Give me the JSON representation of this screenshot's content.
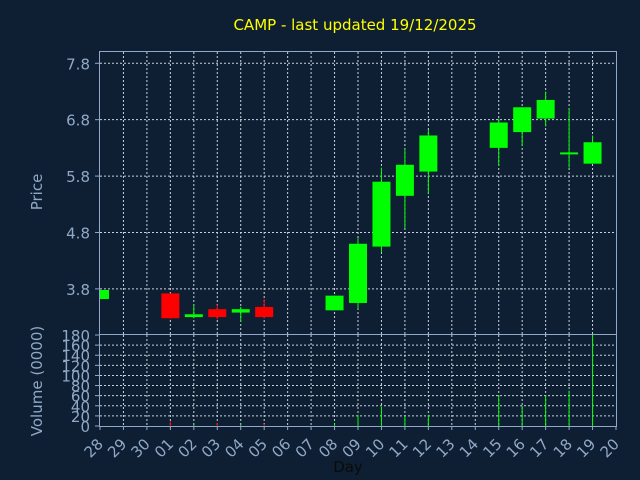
{
  "chart_data": {
    "type": "candlestick",
    "title": "CAMP - last updated 19/12/2025",
    "ylabel": "Price",
    "volume_label": "Volume (0000)",
    "xlabel": "Day",
    "x_ticks": [
      "28",
      "29",
      "30",
      "01",
      "02",
      "03",
      "04",
      "05",
      "06",
      "07",
      "08",
      "09",
      "10",
      "11",
      "12",
      "13",
      "14",
      "15",
      "16",
      "17",
      "18",
      "19",
      "20"
    ],
    "price_ticks": [
      "3.8",
      "4.8",
      "5.8",
      "6.8",
      "7.8"
    ],
    "price_tick_values": [
      3.8,
      4.8,
      5.8,
      6.8,
      7.8
    ],
    "volume_ticks": [
      "0",
      "20",
      "40",
      "60",
      "80",
      "100",
      "120",
      "140",
      "160",
      "180"
    ],
    "volume_tick_values": [
      0,
      20,
      40,
      60,
      80,
      100,
      120,
      140,
      160,
      180
    ],
    "ylim": [
      3.0,
      8.0
    ],
    "volume_ylim": [
      0,
      180
    ],
    "grid": true,
    "colors": {
      "up": "#00ff00",
      "down": "#ff0000",
      "grid": "#c8d2dc",
      "frame": "#8fa9c6",
      "background": "#0f1f33"
    },
    "candles": [
      {
        "day": "28",
        "open": 3.62,
        "high": 3.78,
        "low": 3.62,
        "close": 3.78,
        "volume": 0
      },
      {
        "day": "01",
        "open": 3.72,
        "high": 3.72,
        "low": 3.27,
        "close": 3.28,
        "volume": 10
      },
      {
        "day": "02",
        "open": 3.3,
        "high": 3.52,
        "low": 3.28,
        "close": 3.35,
        "volume": 2
      },
      {
        "day": "03",
        "open": 3.44,
        "high": 3.52,
        "low": 3.26,
        "close": 3.3,
        "volume": 6
      },
      {
        "day": "04",
        "open": 3.38,
        "high": 3.48,
        "low": 3.22,
        "close": 3.44,
        "volume": 3
      },
      {
        "day": "05",
        "open": 3.48,
        "high": 3.62,
        "low": 3.28,
        "close": 3.3,
        "volume": 4
      },
      {
        "day": "08",
        "open": 3.42,
        "high": 3.68,
        "low": 3.42,
        "close": 3.68,
        "volume": 5
      },
      {
        "day": "09",
        "open": 3.55,
        "high": 4.7,
        "low": 3.45,
        "close": 4.6,
        "volume": 22
      },
      {
        "day": "10",
        "open": 4.55,
        "high": 5.95,
        "low": 4.45,
        "close": 5.7,
        "volume": 38
      },
      {
        "day": "11",
        "open": 5.45,
        "high": 6.28,
        "low": 4.88,
        "close": 6.0,
        "volume": 20
      },
      {
        "day": "12",
        "open": 5.88,
        "high": 6.62,
        "low": 5.48,
        "close": 6.52,
        "volume": 22
      },
      {
        "day": "15",
        "open": 6.3,
        "high": 6.82,
        "low": 5.98,
        "close": 6.75,
        "volume": 60
      },
      {
        "day": "16",
        "open": 6.58,
        "high": 7.02,
        "low": 6.33,
        "close": 7.02,
        "volume": 40
      },
      {
        "day": "17",
        "open": 6.82,
        "high": 7.3,
        "low": 6.68,
        "close": 7.15,
        "volume": 60
      },
      {
        "day": "18",
        "open": 6.2,
        "high": 7.0,
        "low": 5.95,
        "close": 6.22,
        "volume": 70
      },
      {
        "day": "19",
        "open": 6.02,
        "high": 6.52,
        "low": 6.02,
        "close": 6.4,
        "volume": 180
      }
    ]
  }
}
